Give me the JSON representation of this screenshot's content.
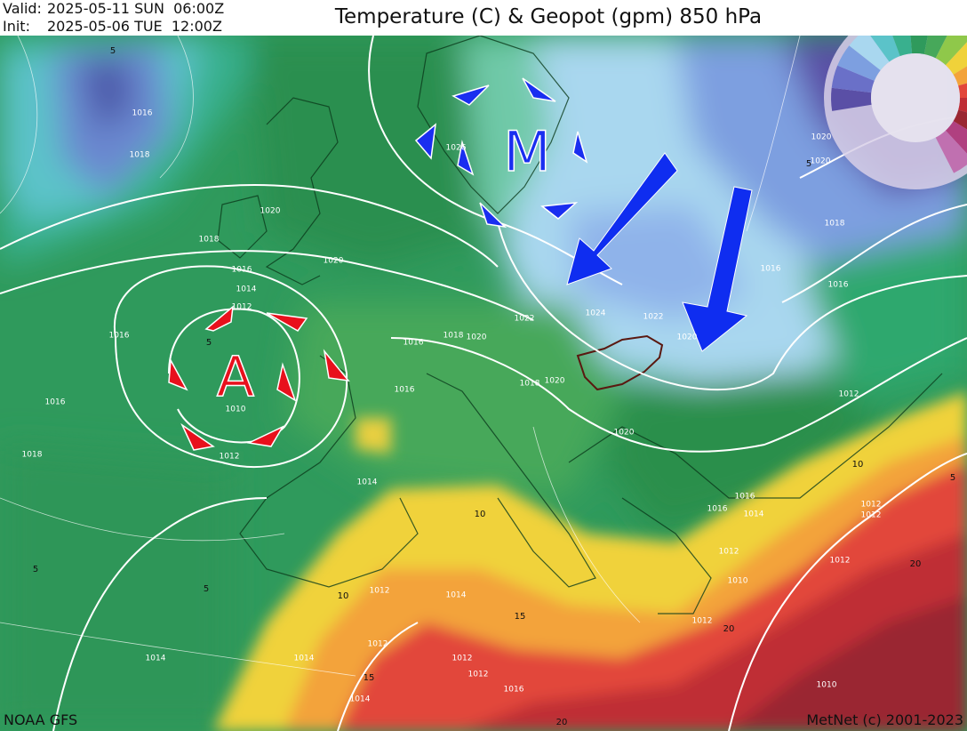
{
  "header": {
    "valid_label": "Valid:",
    "valid": "2025-05-11 SUN  06:00Z",
    "init_label": "Init:",
    "init": "2025-05-06 TUE  12:00Z",
    "title": "Temperature (C) & Geopot (gpm) 850 hPa"
  },
  "map": {
    "pressure_centers": [
      {
        "label": "A"
      },
      {
        "label": "M"
      }
    ],
    "isobar_labels": [
      "1016",
      "1018",
      "1020",
      "1018",
      "1016",
      "1014",
      "1012",
      "1016",
      "1010",
      "1012",
      "1016",
      "1018",
      "1020",
      "1026",
      "1022",
      "1024",
      "1022",
      "1020",
      "1018",
      "1016",
      "1016",
      "1018",
      "1020",
      "1020",
      "1020",
      "1020",
      "1020",
      "1018",
      "1016",
      "1016",
      "1012",
      "1016",
      "1016",
      "1014",
      "1012",
      "1012",
      "1010",
      "1012",
      "1014",
      "1014",
      "1012",
      "1012",
      "1014",
      "1014",
      "1012",
      "1012",
      "1016",
      "1014",
      "1010",
      "1012",
      "1012"
    ],
    "isotherm_labels": [
      "5",
      "5",
      "5",
      "5",
      "5",
      "10",
      "10",
      "10",
      "15",
      "15",
      "20",
      "20",
      "20",
      "5"
    ]
  },
  "footer": {
    "source": "NOAA GFS",
    "credit": "MetNet (c) 2001-2023"
  }
}
